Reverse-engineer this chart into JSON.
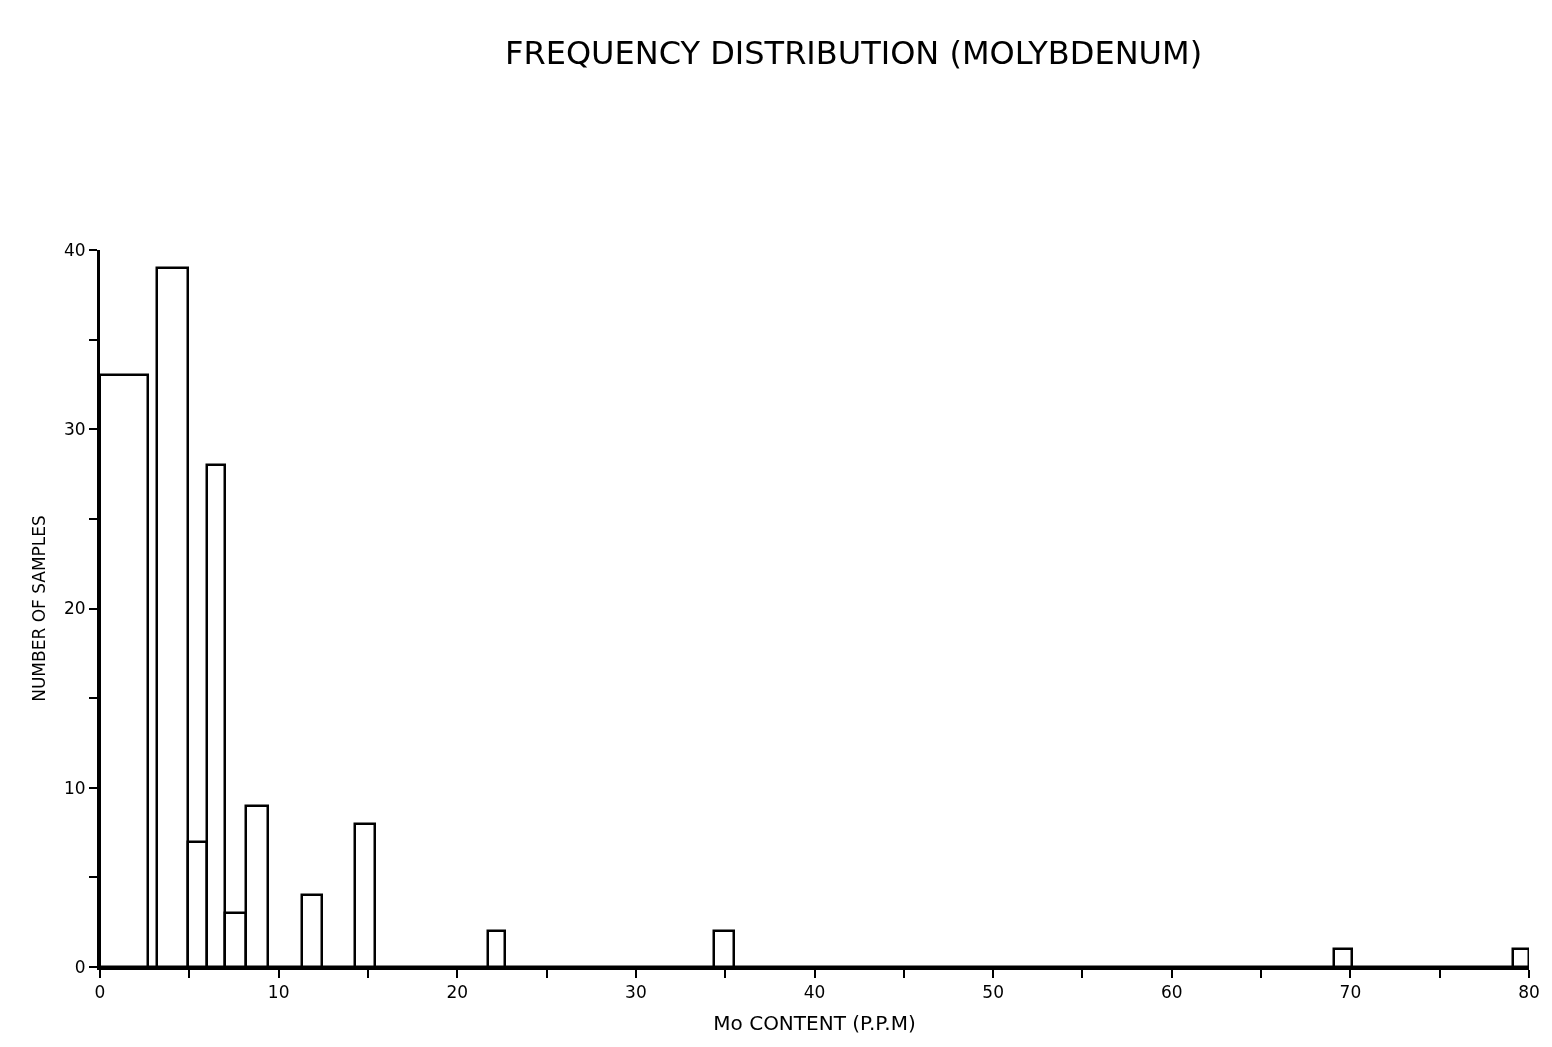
{
  "chart_data": {
    "type": "histogram",
    "title": "FREQUENCY DISTRIBUTION (MOLYBDENUM)",
    "xlabel": "Mo CONTENT (P.P.M)",
    "ylabel": "NUMBER OF SAMPLES",
    "bins": [
      0,
      2.7,
      3.2,
      4.9,
      6.0,
      7.0,
      8.2,
      9.4,
      11.3,
      12.4,
      14.3,
      15.4,
      21.7,
      22.7,
      34.4,
      35.5,
      69.1,
      70.1,
      79.1,
      80
    ],
    "values": [
      33,
      0,
      39,
      7,
      28,
      3,
      9,
      0,
      4,
      0,
      8,
      0,
      2,
      0,
      2,
      0,
      1,
      0,
      1
    ],
    "color": "#000000",
    "xlim": [
      0,
      80
    ],
    "xticks": [
      0,
      {
        "value": 5,
        "label": null
      },
      10,
      {
        "value": 15,
        "label": null
      },
      20,
      {
        "value": 25,
        "label": null
      },
      30,
      {
        "value": 35,
        "label": null
      },
      40,
      {
        "value": 45,
        "label": null
      },
      50,
      {
        "value": 55,
        "label": null
      },
      60,
      {
        "value": 65,
        "label": null
      },
      70,
      {
        "value": 75,
        "label": null
      },
      80
    ],
    "ylim": [
      0,
      40
    ],
    "yticks": [
      0,
      {
        "value": 5,
        "label": null
      },
      10,
      {
        "value": 15,
        "label": null
      },
      20,
      {
        "value": 25,
        "label": null
      },
      30,
      {
        "value": 35,
        "label": null
      },
      40
    ]
  }
}
